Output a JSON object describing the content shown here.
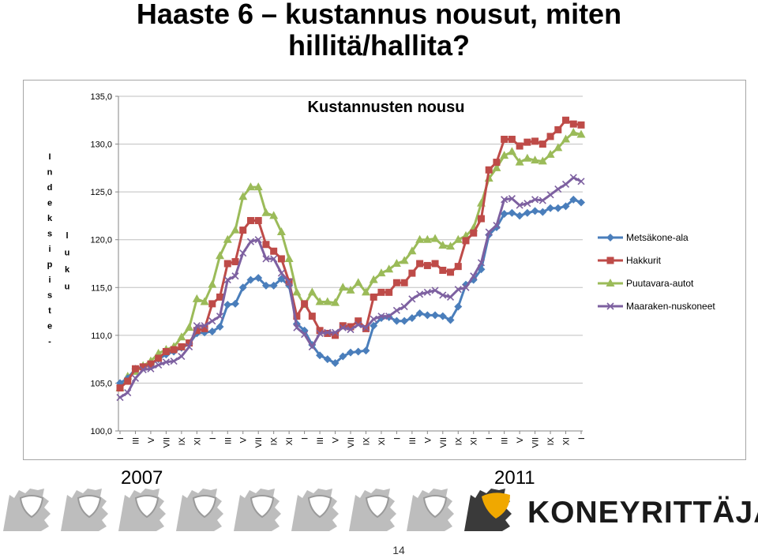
{
  "slide": {
    "title_line1": "Haaste 6 – kustannus nousut, miten",
    "title_line2": "hillitä/hallita?",
    "year_start": "2007",
    "year_end": "2011",
    "brand": "KONEYRITTÄJÄT",
    "page_number": "14"
  },
  "chart_data": {
    "type": "line",
    "title": "Kustannusten nousu",
    "ylabel_1": "Indeksipiste-",
    "ylabel_2": "luku",
    "ylim": [
      100,
      135
    ],
    "yticks": [
      "100,0",
      "105,0",
      "110,0",
      "115,0",
      "120,0",
      "125,0",
      "130,0",
      "135,0"
    ],
    "grid": true,
    "legend_position": "right",
    "x_month_cycle": [
      "I",
      "III",
      "V",
      "VII",
      "IX",
      "XI"
    ],
    "series": [
      {
        "name": "Metsäkone-ala",
        "color": "#4a7ebb",
        "marker": "diamond",
        "values": [
          105.0,
          105.5,
          106.5,
          106.7,
          107.0,
          107.5,
          108.0,
          108.3,
          108.7,
          109.1,
          110.2,
          110.3,
          110.4,
          110.9,
          113.2,
          113.3,
          115.0,
          115.8,
          116.0,
          115.2,
          115.2,
          115.9,
          115.2,
          111.2,
          110.5,
          109.0,
          107.9,
          107.5,
          107.1,
          107.8,
          108.2,
          108.3,
          108.4,
          111.0,
          111.8,
          111.9,
          111.5,
          111.5,
          111.8,
          112.3,
          112.1,
          112.1,
          112.0,
          111.6,
          113.0,
          115.3,
          115.8,
          116.9,
          120.5,
          121.3,
          122.7,
          122.8,
          122.5,
          122.8,
          123.0,
          122.9,
          123.3,
          123.3,
          123.5,
          124.2,
          123.9
        ]
      },
      {
        "name": "Hakkurit",
        "color": "#be4b48",
        "marker": "square",
        "values": [
          104.5,
          105.2,
          106.5,
          106.7,
          107.0,
          107.6,
          108.3,
          108.5,
          108.8,
          109.2,
          110.5,
          110.7,
          113.3,
          114.0,
          117.5,
          117.7,
          121.0,
          122.0,
          122.0,
          119.5,
          118.8,
          118.0,
          115.6,
          112.0,
          113.3,
          112.0,
          110.5,
          110.2,
          110.0,
          111.0,
          110.9,
          111.5,
          110.7,
          114.0,
          114.5,
          114.5,
          115.5,
          115.5,
          116.5,
          117.5,
          117.3,
          117.5,
          116.8,
          116.6,
          117.2,
          119.9,
          120.7,
          122.2,
          127.3,
          128.1,
          130.5,
          130.5,
          129.8,
          130.2,
          130.3,
          130.0,
          130.8,
          131.5,
          132.5,
          132.1,
          132.0
        ]
      },
      {
        "name": "Puutavara-autot",
        "color": "#9bbb59",
        "marker": "triangle",
        "values": [
          104.5,
          105.7,
          106.2,
          106.8,
          107.3,
          108.1,
          108.5,
          108.8,
          109.8,
          110.8,
          113.8,
          113.5,
          115.3,
          118.3,
          120.0,
          121.0,
          124.5,
          125.5,
          125.5,
          122.8,
          122.5,
          120.8,
          118.0,
          114.5,
          113.2,
          114.5,
          113.5,
          113.5,
          113.4,
          115.0,
          114.7,
          115.5,
          114.5,
          115.8,
          116.5,
          116.9,
          117.5,
          117.8,
          118.8,
          120.0,
          120.0,
          120.1,
          119.4,
          119.3,
          120.0,
          120.4,
          121.2,
          123.8,
          126.4,
          127.5,
          128.8,
          129.2,
          128.1,
          128.5,
          128.3,
          128.2,
          128.9,
          129.6,
          130.5,
          131.2,
          131.0
        ]
      },
      {
        "name": "Maaraken-nuskoneet",
        "color": "#7d60a0",
        "marker": "x",
        "values": [
          103.5,
          104.0,
          105.5,
          106.4,
          106.5,
          106.9,
          107.2,
          107.3,
          107.8,
          108.8,
          111.0,
          111.0,
          111.5,
          112.0,
          115.8,
          116.2,
          118.6,
          119.8,
          120.0,
          118.0,
          118.0,
          116.5,
          115.6,
          110.8,
          110.1,
          108.8,
          110.2,
          110.3,
          110.3,
          110.8,
          110.6,
          111.1,
          110.8,
          111.7,
          112.0,
          112.0,
          112.6,
          113.0,
          113.8,
          114.3,
          114.5,
          114.7,
          114.2,
          114.0,
          114.8,
          115.0,
          116.2,
          117.6,
          120.8,
          121.5,
          124.2,
          124.3,
          123.6,
          123.8,
          124.2,
          124.1,
          124.7,
          125.3,
          125.8,
          126.5,
          126.1
        ]
      }
    ]
  }
}
